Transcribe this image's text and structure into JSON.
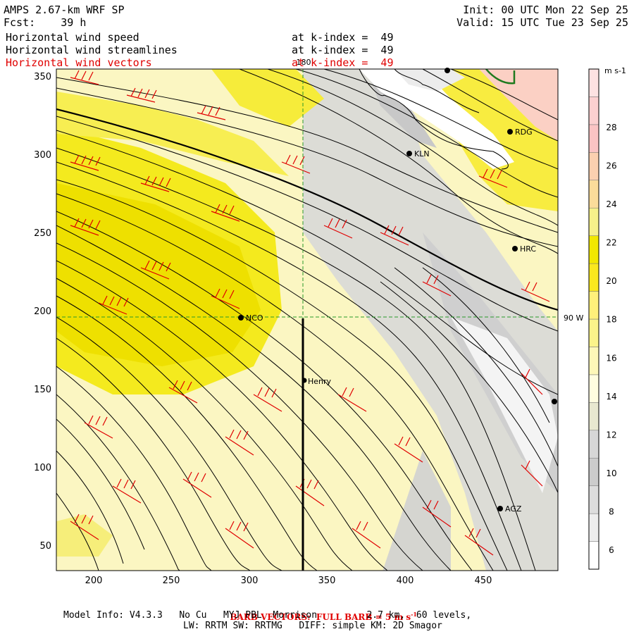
{
  "header": {
    "model_title": "AMPS 2.67-km WRF SP",
    "forecast": "Fcst:    39 h",
    "init": "Init: 00 UTC Mon 22 Sep 25",
    "valid": "Valid: 15 UTC Tue 23 Sep 25"
  },
  "fields": [
    {
      "name": "Horizontal wind speed",
      "level": "at k-index =  49",
      "color": "#000000"
    },
    {
      "name": "Horizontal wind streamlines",
      "level": "at k-index =  49",
      "color": "#000000"
    },
    {
      "name": "Horizontal wind vectors",
      "level": "at k-index =  49",
      "color": "#e00000"
    }
  ],
  "map": {
    "x_ticks": [
      "200",
      "250",
      "300",
      "350",
      "400",
      "450"
    ],
    "y_ticks": [
      "50",
      "100",
      "150",
      "200",
      "250",
      "300",
      "350"
    ],
    "meridian_label": "180",
    "parallel_label": "90 W",
    "stations": [
      {
        "code": "RDG"
      },
      {
        "code": "KLN"
      },
      {
        "code": "HRC"
      },
      {
        "code": "NCO"
      },
      {
        "code": "Henry"
      },
      {
        "code": "AGZ"
      }
    ]
  },
  "colorbar": {
    "unit": "m s-1",
    "labels": [
      "28",
      "26",
      "24",
      "22",
      "20",
      "18",
      "16",
      "14",
      "12",
      "10",
      "8",
      "6"
    ],
    "colors": [
      "#ffffff",
      "#eeeeee",
      "#dddddd",
      "#cccccc",
      "#d7d7d7",
      "#e8e8d0",
      "#fffde0",
      "#fdf7b8",
      "#fbf38a",
      "#fff07a",
      "#fae81e",
      "#f2e800",
      "#f6f08a",
      "#fbdc9a",
      "#fbd0b0",
      "#fbc4c4",
      "#fcd0d0",
      "#fde2e2"
    ]
  },
  "footer": {
    "barb_note": "BARB VECTORS:  FULL BARB = 5 m s",
    "barb_exp": "-1",
    "model_info": "Model Info: V4.3.3   No Cu   MYJ PBL  Morrison         2.7 km,  60 levels,",
    "physics": "LW: RRTM SW: RRTMG   DIFF: simple KM: 2D Smagor"
  }
}
